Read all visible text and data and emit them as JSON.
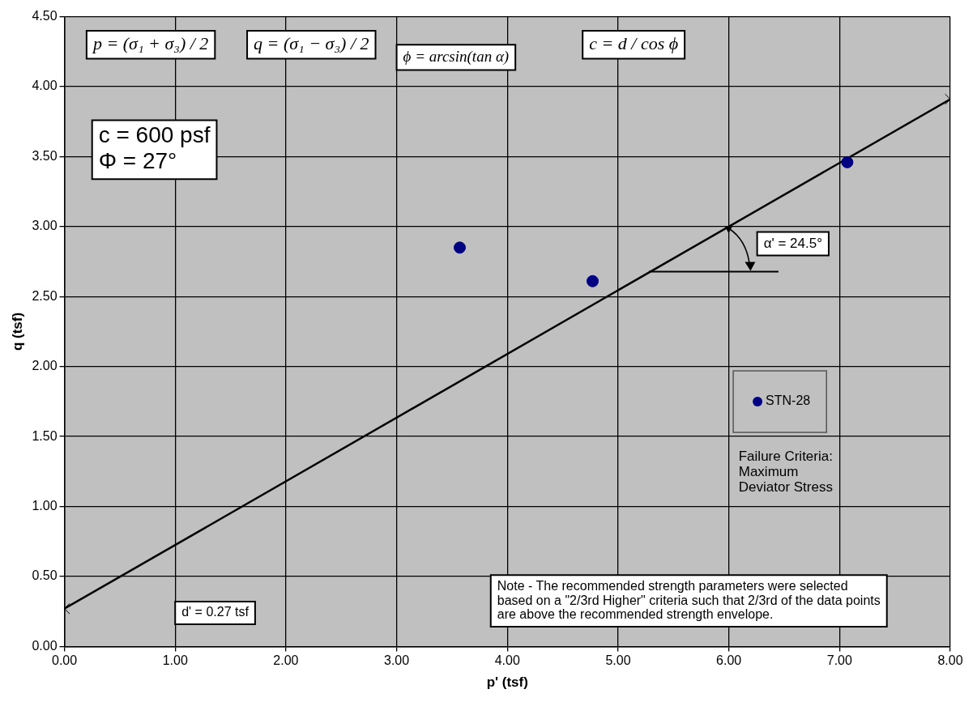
{
  "chart_data": {
    "type": "scatter",
    "xlabel": "p' (tsf)",
    "ylabel": "q (tsf)",
    "xlim": [
      0,
      8
    ],
    "ylim": [
      0,
      4.5
    ],
    "xticks": [
      {
        "value": 0,
        "label": "0.00"
      },
      {
        "value": 1,
        "label": "1.00"
      },
      {
        "value": 2,
        "label": "2.00"
      },
      {
        "value": 3,
        "label": "3.00"
      },
      {
        "value": 4,
        "label": "4.00"
      },
      {
        "value": 5,
        "label": "5.00"
      },
      {
        "value": 6,
        "label": "6.00"
      },
      {
        "value": 7,
        "label": "7.00"
      },
      {
        "value": 8,
        "label": "8.00"
      }
    ],
    "yticks": [
      {
        "value": 0,
        "label": "0.00"
      },
      {
        "value": 0.5,
        "label": "0.50"
      },
      {
        "value": 1,
        "label": "1.00"
      },
      {
        "value": 1.5,
        "label": "1.50"
      },
      {
        "value": 2,
        "label": "2.00"
      },
      {
        "value": 2.5,
        "label": "2.50"
      },
      {
        "value": 3,
        "label": "3.00"
      },
      {
        "value": 3.5,
        "label": "3.50"
      },
      {
        "value": 4,
        "label": "4.00"
      },
      {
        "value": 4.5,
        "label": "4.50"
      }
    ],
    "grid": true,
    "legend": "right",
    "series": [
      {
        "name": "STN-28",
        "type": "scatter",
        "color": "#000080",
        "marker": "circle",
        "x": [
          3.57,
          4.77,
          7.07
        ],
        "values": [
          2.85,
          2.61,
          3.46
        ]
      },
      {
        "type": "line",
        "color": "#000000",
        "marker": "cross",
        "x": [
          0,
          8
        ],
        "values": [
          0.27,
          3.91
        ]
      }
    ],
    "annotations": [
      "p = (σ₁ + σ₃) / 2",
      "q = (σ₁ − σ₃) / 2",
      "ϕ = arcsin(tan α)",
      "c = d / cos ϕ",
      "c = 600 psf\nΦ = 27°",
      {
        "text": "α' = 24.5°",
        "x": 6.0,
        "y": 2.99
      },
      "Failure Criteria:\nMaximum\nDeviator Stress",
      "d' = 0.27 tsf",
      "Note - The recommended strength parameters were selected\nbased on a \"2/3rd Higher\" criteria such that 2/3rd of the data points\nare above the recommended strength envelope."
    ]
  }
}
